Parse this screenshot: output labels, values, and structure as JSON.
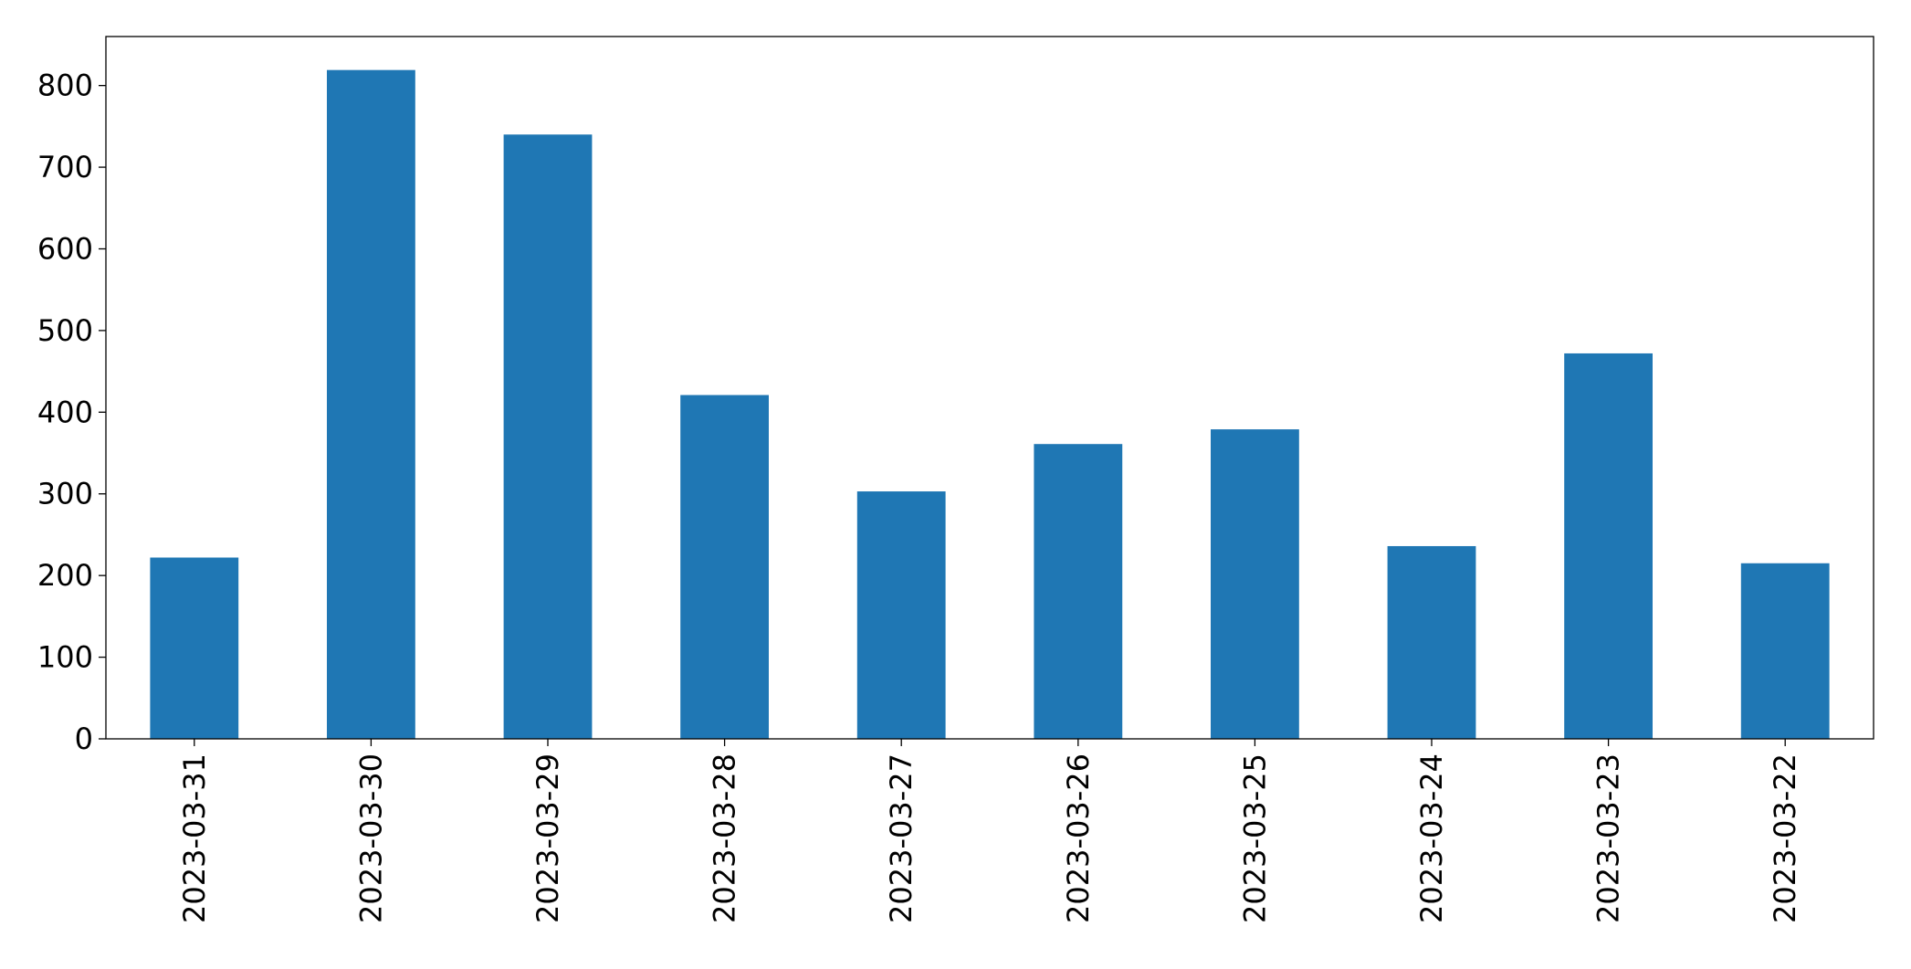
{
  "chart_data": {
    "type": "bar",
    "categories": [
      "2023-03-31",
      "2023-03-30",
      "2023-03-29",
      "2023-03-28",
      "2023-03-27",
      "2023-03-26",
      "2023-03-25",
      "2023-03-24",
      "2023-03-23",
      "2023-03-22"
    ],
    "values": [
      222,
      819,
      740,
      421,
      303,
      361,
      379,
      236,
      472,
      215
    ],
    "color": "#1f77b4",
    "ylim": [
      0,
      860
    ],
    "yticks": [
      0,
      100,
      200,
      300,
      400,
      500,
      600,
      700,
      800
    ],
    "grid": false
  }
}
